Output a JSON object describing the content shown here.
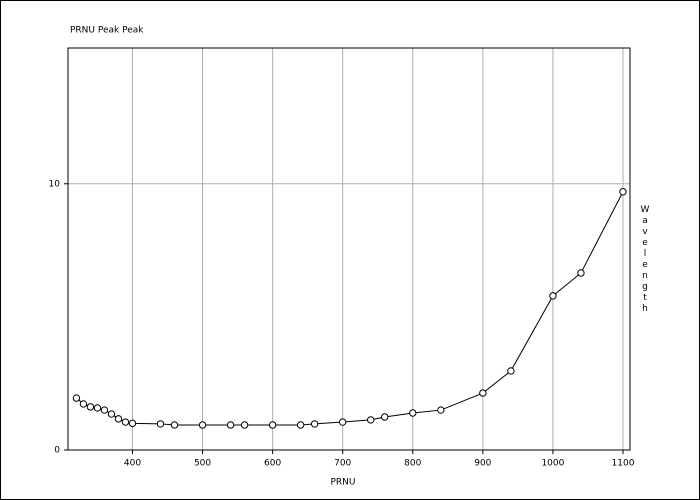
{
  "chart_data": {
    "type": "line",
    "title": "PRNU Peak Peak",
    "x_label": "PRNU",
    "y_label": "Wavelength",
    "x": [
      320,
      330,
      340,
      350,
      360,
      370,
      380,
      390,
      400,
      440,
      460,
      500,
      540,
      560,
      600,
      640,
      660,
      700,
      740,
      760,
      800,
      840,
      900,
      940,
      1000,
      1040,
      1100
    ],
    "series": [
      {
        "name": "PRNU Peak Peak",
        "color": "#000000",
        "values": [
          1.95,
          1.73,
          1.62,
          1.58,
          1.5,
          1.35,
          1.17,
          1.05,
          1.0,
          0.98,
          0.94,
          0.94,
          0.94,
          0.94,
          0.94,
          0.94,
          0.98,
          1.05,
          1.13,
          1.24,
          1.39,
          1.5,
          2.14,
          2.97,
          5.79,
          6.65,
          9.7
        ]
      }
    ],
    "xlim": [
      308,
      1110
    ],
    "ylim": [
      0,
      15.1
    ],
    "xticks": [
      400,
      500,
      600,
      700,
      800,
      900,
      1000,
      1100
    ],
    "yticks": [
      0,
      10
    ],
    "grid": true
  }
}
